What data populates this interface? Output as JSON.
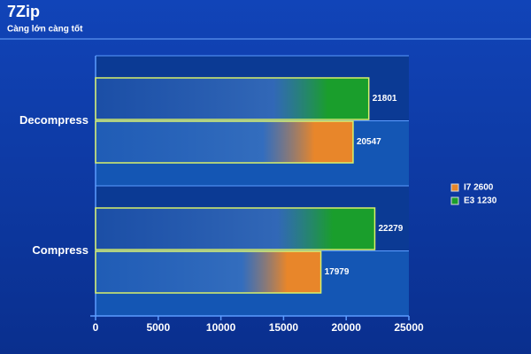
{
  "chart_data": {
    "type": "hbar",
    "title": "7Zip",
    "subtitle": "Càng lớn càng tốt",
    "categories": [
      "Decompress",
      "Compress"
    ],
    "series": [
      {
        "name": "I7 2600",
        "color": "#e8862a",
        "values": [
          20547,
          17979
        ]
      },
      {
        "name": "E3 1230",
        "color": "#1a9e2c",
        "values": [
          21801,
          22279
        ]
      }
    ],
    "xlim": [
      0,
      25000
    ],
    "xticks": [
      0,
      5000,
      10000,
      15000,
      20000,
      25000
    ],
    "legend": "right"
  }
}
